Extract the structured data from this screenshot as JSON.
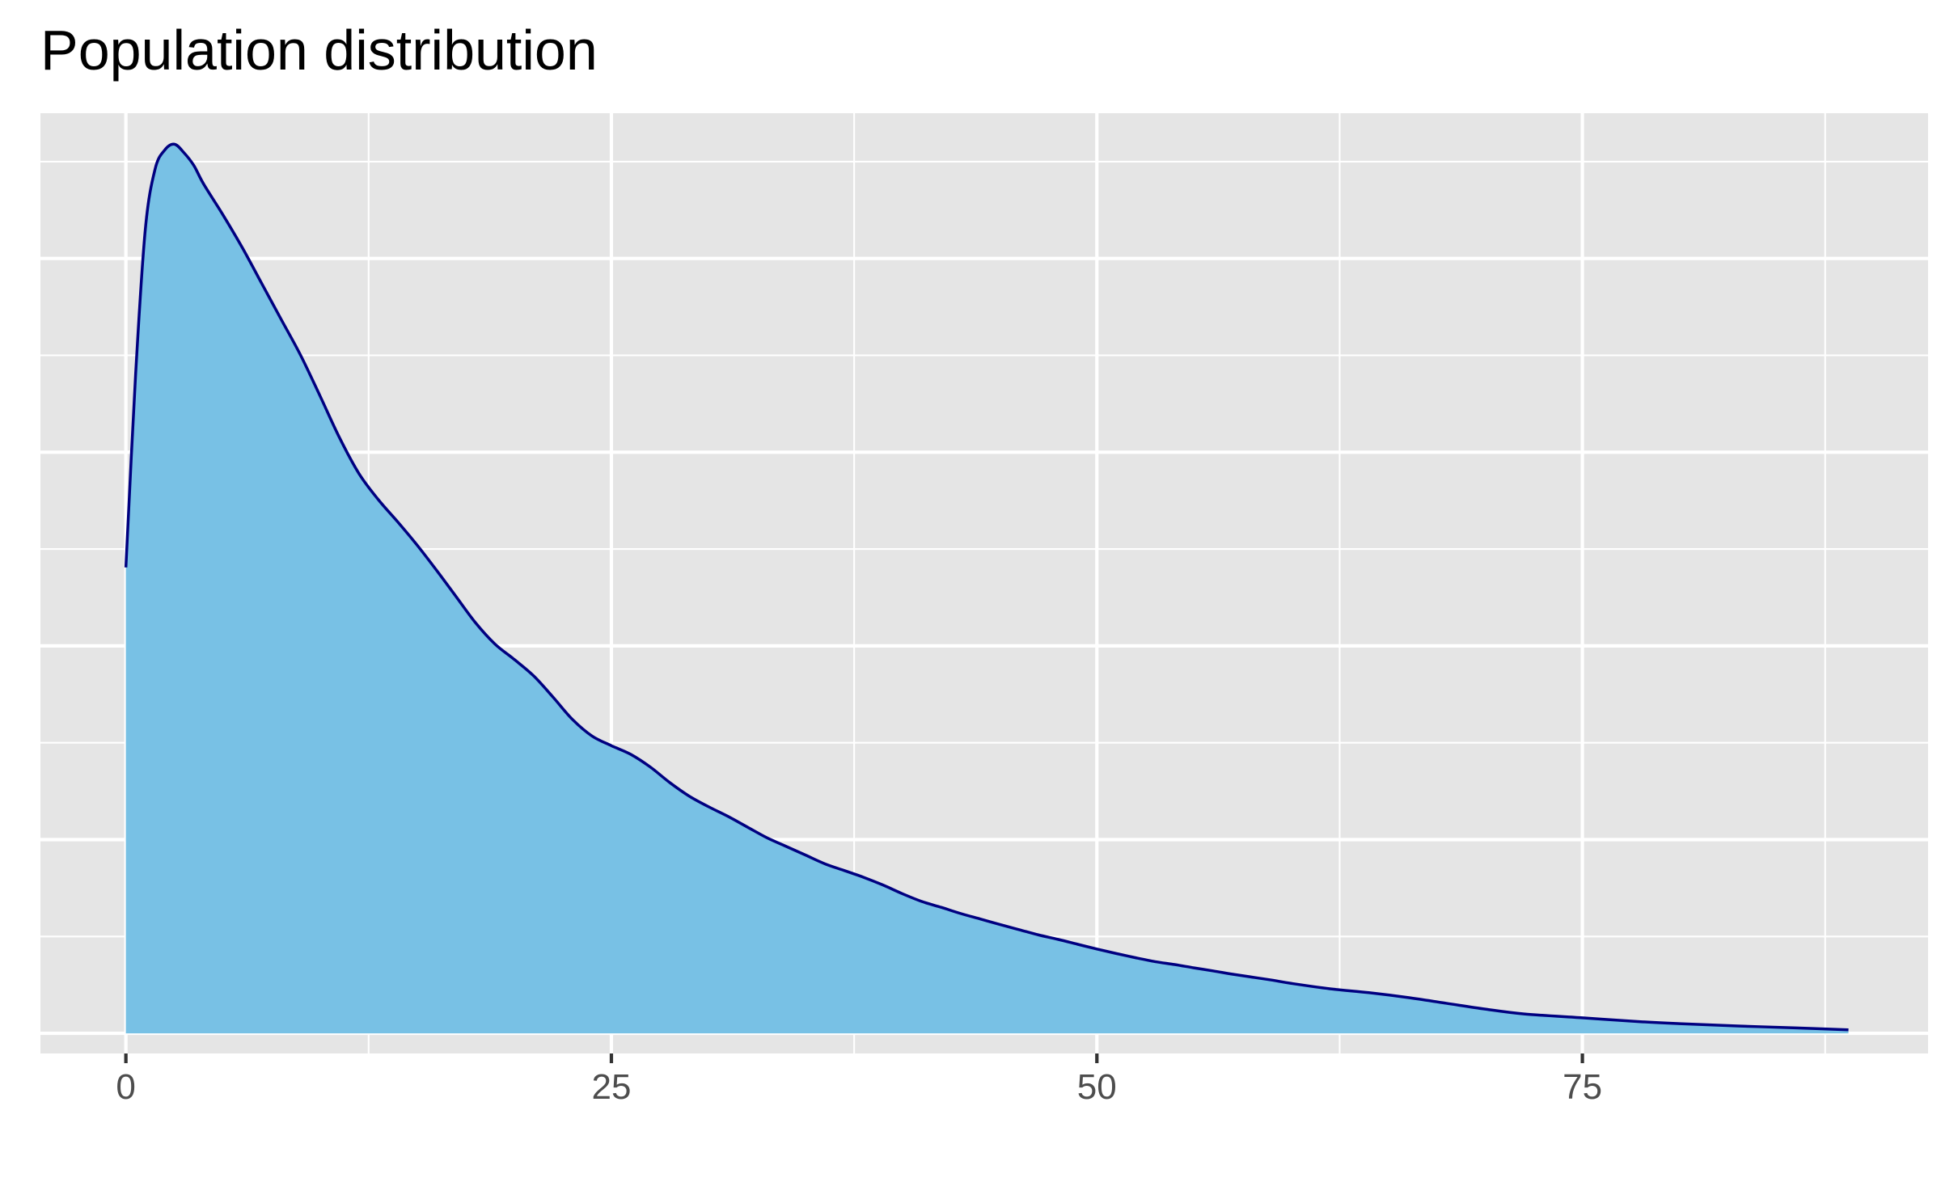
{
  "chart_data": {
    "type": "area",
    "title": "Population distribution",
    "xlabel": "",
    "ylabel": "",
    "xlim": [
      -4.4,
      92.8
    ],
    "ylim": [
      -0.00104,
      0.0475
    ],
    "x_ticks": [
      0,
      25,
      50,
      75
    ],
    "x_tick_labels": [
      "0",
      "25",
      "50",
      "75"
    ],
    "y_tick_labels_shown": false,
    "grid": true,
    "legend": "none",
    "fill_color": "#78C1E5",
    "line_color": "#000080",
    "panel_color": "#E5E5E5",
    "series": [
      {
        "x": [
          0,
          0.5,
          1,
          1.5,
          2,
          2.5,
          3,
          3.5,
          4,
          5,
          6,
          7,
          8,
          9,
          10,
          11,
          12,
          13,
          14,
          15,
          16,
          17,
          18,
          19,
          20,
          21,
          22,
          23,
          24,
          25,
          26,
          27,
          28,
          29,
          30,
          31,
          32,
          33,
          34,
          35,
          36,
          37,
          38,
          39,
          40,
          41,
          42,
          43,
          44,
          45,
          46,
          47,
          48,
          49,
          50,
          51,
          52,
          53,
          54,
          55,
          56,
          57,
          58,
          59,
          60,
          62,
          64,
          66,
          68,
          70,
          72,
          75,
          78,
          80,
          83,
          86,
          88.7
        ],
        "values": [
          0.02405,
          0.034,
          0.0415,
          0.0446,
          0.0456,
          0.0459,
          0.04545,
          0.0448,
          0.04385,
          0.04225,
          0.04055,
          0.0387,
          0.03685,
          0.035,
          0.0329,
          0.03075,
          0.0289,
          0.02755,
          0.0264,
          0.0252,
          0.0239,
          0.02255,
          0.0212,
          0.0201,
          0.0193,
          0.01845,
          0.01735,
          0.0162,
          0.01535,
          0.01485,
          0.0144,
          0.01375,
          0.01295,
          0.01225,
          0.0117,
          0.0112,
          0.01065,
          0.0101,
          0.00965,
          0.0092,
          0.00875,
          0.0084,
          0.00805,
          0.00765,
          0.0072,
          0.0068,
          0.0065,
          0.00618,
          0.0059,
          0.00562,
          0.00535,
          0.00508,
          0.00485,
          0.0046,
          0.00435,
          0.00412,
          0.0039,
          0.0037,
          0.00355,
          0.00338,
          0.00322,
          0.00305,
          0.0029,
          0.00275,
          0.00258,
          0.0023,
          0.0021,
          0.00185,
          0.00155,
          0.00125,
          0.001,
          0.0008,
          0.0006,
          0.0005,
          0.00038,
          0.00028,
          0.00018
        ]
      }
    ]
  }
}
